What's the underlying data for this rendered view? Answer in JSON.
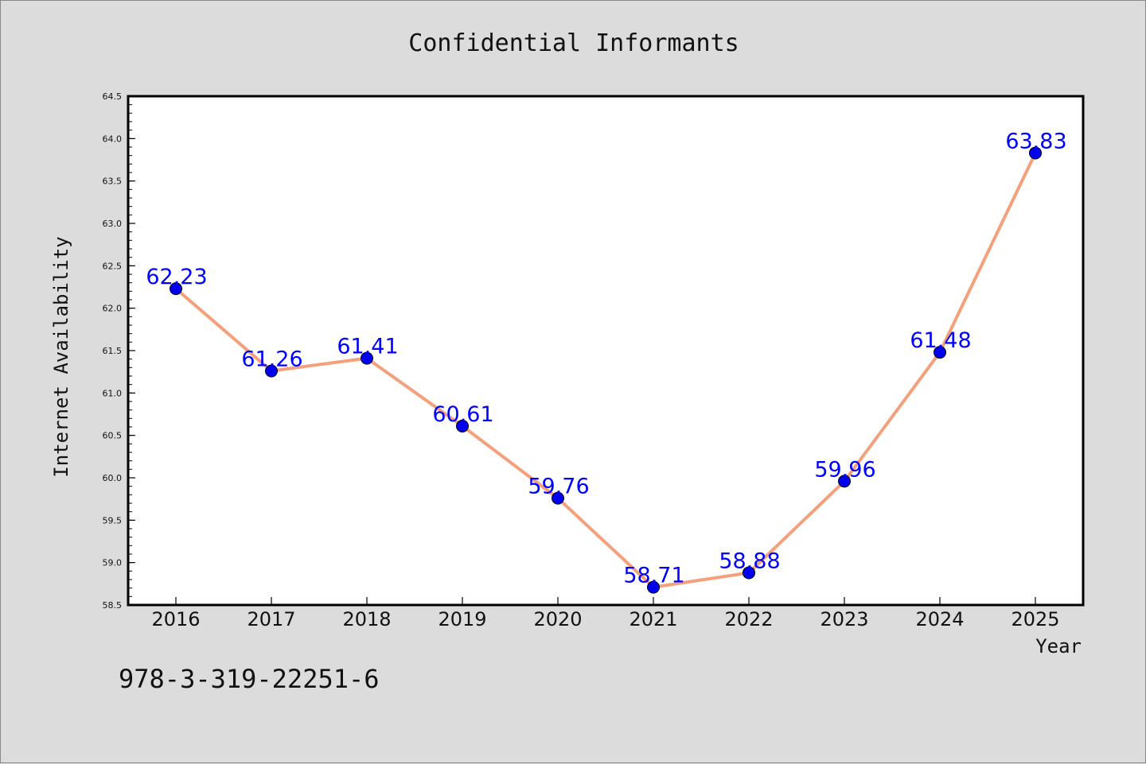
{
  "chart_data": {
    "type": "line",
    "title": "Confidential Informants",
    "xlabel": "Year",
    "ylabel": "Internet Availability",
    "x": [
      "2016",
      "2017",
      "2018",
      "2019",
      "2020",
      "2021",
      "2022",
      "2023",
      "2024",
      "2025"
    ],
    "series": [
      {
        "values": [
          62.23,
          61.26,
          61.41,
          60.61,
          59.76,
          58.71,
          58.88,
          59.96,
          61.48,
          63.83
        ],
        "data_labels": [
          "62.23",
          "61.26",
          "61.41",
          "60.61",
          "59.76",
          "58.71",
          "58.88",
          "59.96",
          "61.48",
          "63.83"
        ],
        "line_color": "#f4a07c",
        "marker_color": "#0000ee"
      }
    ],
    "ylim": [
      58.5,
      64.5
    ],
    "yticks": [
      "58.5",
      "59.0",
      "59.5",
      "60.0",
      "60.5",
      "61.0",
      "61.5",
      "62.0",
      "62.5",
      "63.0",
      "63.5",
      "64.0",
      "64.5"
    ],
    "grid": false,
    "legend": "none",
    "label_color": "#0000ff",
    "background": "#dcdcdc",
    "plot_background": "#ffffff"
  },
  "footer": {
    "text": "978-3-319-22251-6"
  }
}
